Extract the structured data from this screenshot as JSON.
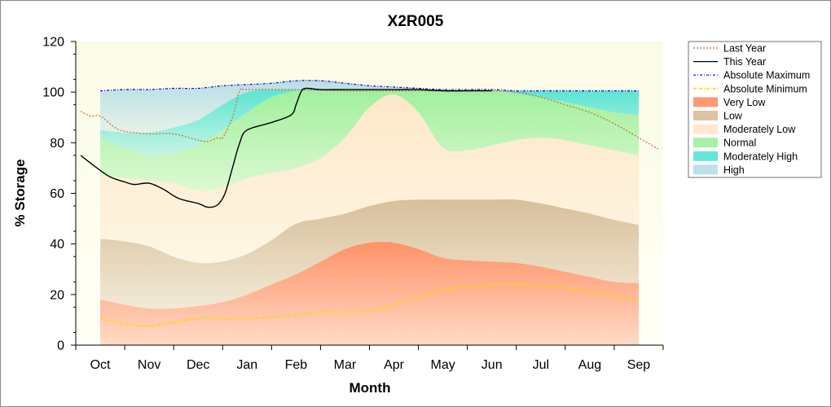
{
  "chart_data": {
    "type": "area",
    "title": "X2R005",
    "xlabel": "Month",
    "ylabel": "% Storage",
    "categories": [
      "Oct",
      "Nov",
      "Dec",
      "Jan",
      "Feb",
      "Mar",
      "Apr",
      "May",
      "Jun",
      "Jul",
      "Aug",
      "Sep"
    ],
    "x_range": [
      -0.5,
      11.5
    ],
    "ylim": [
      0,
      120
    ],
    "yticks": [
      0,
      20,
      40,
      60,
      80,
      100,
      120
    ],
    "grid": false,
    "legend_position": "right",
    "bands": [
      {
        "name": "Very Low",
        "color": "#ff7f50",
        "x": [
          0,
          0.5,
          1,
          1.5,
          2,
          2.5,
          3,
          3.5,
          4,
          4.5,
          5,
          5.5,
          6,
          6.5,
          7,
          7.5,
          8,
          8.5,
          9,
          9.5,
          10,
          10.5,
          11
        ],
        "lower": [
          0,
          0,
          0,
          0,
          0,
          0,
          0,
          0,
          0,
          0,
          0,
          0,
          0,
          0,
          0,
          0,
          0,
          0,
          0,
          0,
          0,
          0,
          0
        ],
        "upper": [
          18,
          16,
          14.5,
          14.5,
          15.5,
          17,
          20,
          24,
          28,
          33,
          38,
          40.5,
          40.5,
          38,
          34.5,
          33.5,
          33,
          32.5,
          31,
          29,
          27,
          25,
          24.5
        ]
      },
      {
        "name": "Low",
        "color": "#d2b48c",
        "x": [
          0,
          0.5,
          1,
          1.5,
          2,
          2.5,
          3,
          3.5,
          4,
          4.5,
          5,
          5.5,
          6,
          6.5,
          7,
          7.5,
          8,
          8.5,
          9,
          9.5,
          10,
          10.5,
          11
        ],
        "lower": [
          18,
          16,
          14.5,
          14.5,
          15.5,
          17,
          20,
          24,
          28,
          33,
          38,
          40.5,
          40.5,
          38,
          34.5,
          33.5,
          33,
          32.5,
          31,
          29,
          27,
          25,
          24.5
        ],
        "upper": [
          42,
          41,
          39,
          35,
          32.5,
          33,
          36,
          41.5,
          48,
          50,
          52,
          55,
          57,
          57.5,
          57.5,
          57.5,
          57.5,
          57.5,
          56,
          54,
          52,
          49.5,
          47.5
        ]
      },
      {
        "name": "Moderately Low",
        "color": "#ffe4c4",
        "x": [
          0,
          0.5,
          1,
          1.5,
          2,
          2.5,
          3,
          3.5,
          4,
          4.5,
          5,
          5.5,
          6,
          6.5,
          7,
          7.5,
          8,
          8.5,
          9,
          9.5,
          10,
          10.5,
          11
        ],
        "lower": [
          42,
          41,
          39,
          35,
          32.5,
          33,
          36,
          41.5,
          48,
          50,
          52,
          55,
          57,
          57.5,
          57.5,
          57.5,
          57.5,
          57.5,
          56,
          54,
          52,
          49.5,
          47.5
        ],
        "upper": [
          67,
          66,
          65,
          64,
          61,
          62,
          66,
          68,
          70,
          74,
          82,
          94,
          99,
          92,
          78,
          77,
          79,
          81,
          82,
          81,
          79,
          77,
          75
        ]
      },
      {
        "name": "Normal",
        "color": "#90ee90",
        "x": [
          0,
          0.5,
          1,
          1.5,
          2,
          2.5,
          3,
          3.5,
          4,
          4.5,
          5,
          5.5,
          6,
          6.5,
          7,
          7.5,
          8,
          8.5,
          9,
          9.5,
          10,
          10.5,
          11
        ],
        "lower": [
          67,
          66,
          65,
          64,
          61,
          62,
          66,
          68,
          70,
          74,
          82,
          94,
          99,
          92,
          78,
          77,
          79,
          81,
          82,
          81,
          79,
          77,
          75
        ],
        "upper": [
          82,
          78,
          75,
          76,
          79,
          85,
          92,
          98,
          100.5,
          100.5,
          100.5,
          100.5,
          100.5,
          100.5,
          100.5,
          100.5,
          100.5,
          99.5,
          98,
          96,
          94,
          92,
          91
        ]
      },
      {
        "name": "Moderately High",
        "color": "#40e0d0",
        "x": [
          0,
          0.5,
          1,
          1.5,
          2,
          2.5,
          3,
          3.5,
          4,
          4.5,
          5,
          5.5,
          6,
          6.5,
          7,
          7.5,
          8,
          8.5,
          9,
          9.5,
          10,
          10.5,
          11
        ],
        "lower": [
          82,
          78,
          75,
          76,
          79,
          85,
          92,
          98,
          100.5,
          100.5,
          100.5,
          100.5,
          100.5,
          100.5,
          100.5,
          100.5,
          100.5,
          99.5,
          98,
          96,
          94,
          92,
          91
        ],
        "upper": [
          85,
          84,
          84,
          86,
          89,
          95,
          100,
          101,
          101,
          101,
          101,
          101,
          101,
          101,
          101,
          100.5,
          100.5,
          100.5,
          100.5,
          100.5,
          100.5,
          100.5,
          100.5
        ]
      },
      {
        "name": "High",
        "color": "#add8e6",
        "x": [
          0,
          0.5,
          1,
          1.5,
          2,
          2.5,
          3,
          3.5,
          4,
          4.5,
          5,
          5.5,
          6,
          6.5,
          7,
          7.5,
          8,
          8.5,
          9,
          9.5,
          10,
          10.5,
          11
        ],
        "lower": [
          85,
          84,
          84,
          86,
          89,
          95,
          100,
          101,
          101,
          101,
          101,
          101,
          101,
          101,
          101,
          100.5,
          100.5,
          100.5,
          100.5,
          100.5,
          100.5,
          100.5,
          100.5
        ],
        "upper": [
          100.5,
          101,
          101,
          101.5,
          101.5,
          102.5,
          103,
          103.5,
          104.5,
          104.5,
          103.5,
          102.5,
          102,
          101.5,
          101,
          101,
          101,
          100.5,
          100.5,
          100.5,
          100.5,
          100.5,
          100.5
        ]
      }
    ],
    "lines": [
      {
        "name": "Last Year",
        "color": "#d2691e",
        "dash": "short-dash",
        "x": [
          -0.4,
          -0.2,
          0,
          0.3,
          0.5,
          1,
          1.5,
          2,
          2.2,
          2.4,
          2.5,
          2.7,
          2.85,
          3,
          4,
          5,
          6,
          7,
          8,
          8.5,
          9,
          9.5,
          10,
          10.5,
          11,
          11.4
        ],
        "y": [
          92.5,
          90.5,
          90.5,
          86,
          84.5,
          83.5,
          83.5,
          81,
          80.5,
          82,
          82,
          90,
          100.5,
          101,
          101,
          100.5,
          100.5,
          100.5,
          100.5,
          100,
          98,
          95,
          92,
          87.5,
          82,
          77.5
        ]
      },
      {
        "name": "This Year",
        "color": "#000000",
        "dash": "solid",
        "x": [
          -0.4,
          -0.1,
          0.2,
          0.5,
          0.7,
          1,
          1.3,
          1.6,
          2,
          2.2,
          2.4,
          2.55,
          2.7,
          2.85,
          3,
          3.5,
          3.9,
          4,
          4.1,
          4.2,
          4.5,
          5,
          6,
          6.5,
          7,
          7.5,
          8
        ],
        "y": [
          75,
          70.5,
          66.5,
          64.5,
          63.5,
          64,
          61.5,
          58,
          56,
          54.5,
          55.5,
          60,
          70,
          80,
          85,
          88,
          91,
          95,
          100,
          101.5,
          101,
          101,
          101,
          101,
          100.5,
          100.5,
          100.5
        ]
      },
      {
        "name": "Absolute Maximum",
        "color": "#0000cd",
        "dash": "dash-dot",
        "x": [
          0,
          0.5,
          1,
          1.5,
          2,
          2.5,
          3,
          3.5,
          4,
          4.5,
          5,
          5.5,
          6,
          6.5,
          7,
          7.5,
          8,
          8.5,
          9,
          9.5,
          10,
          10.5,
          11
        ],
        "y": [
          100.5,
          101,
          101,
          101.5,
          101.5,
          102.5,
          103,
          103.5,
          104.5,
          104.5,
          103.5,
          102.5,
          102,
          101.5,
          101,
          101,
          101,
          100.5,
          100.5,
          100.5,
          100.5,
          100.5,
          100.5
        ]
      },
      {
        "name": "Absolute Minimum",
        "color": "#ffd700",
        "dash": "dash-dot",
        "x": [
          0,
          0.5,
          1,
          1.5,
          2,
          2.5,
          3,
          3.5,
          4,
          4.5,
          5,
          5.5,
          6,
          6.5,
          7,
          7.5,
          8,
          8.5,
          9,
          9.5,
          10,
          10.5,
          11
        ],
        "y": [
          10.5,
          8.5,
          7.5,
          9,
          10.5,
          10.5,
          10.5,
          11,
          12,
          13,
          13,
          13.5,
          16,
          19,
          22,
          23,
          24,
          24,
          23.5,
          22.5,
          21,
          19.5,
          17.5
        ]
      }
    ],
    "legend_order": [
      "Last Year",
      "This Year",
      "Absolute Maximum",
      "Absolute Minimum",
      "Very Low",
      "Low",
      "Moderately Low",
      "Normal",
      "Moderately High",
      "High"
    ]
  }
}
